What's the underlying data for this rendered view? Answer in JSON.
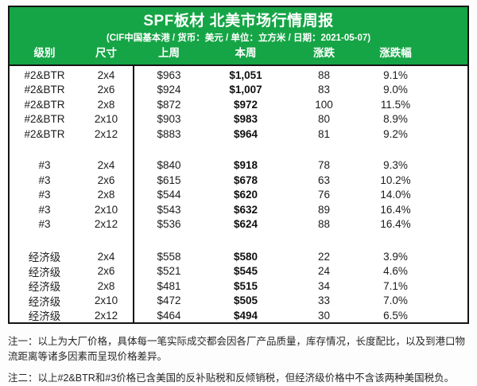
{
  "chart_data": {
    "type": "table",
    "title": "SPF板材 北美市场行情周报",
    "subtitle": "(CIF中国基本港 / 货币：美元 / 单位：立方米 / 日期：2021-05-07)",
    "columns": [
      "级别",
      "尺寸",
      "上周",
      "本周",
      "涨跌",
      "涨跌幅"
    ],
    "groups": [
      {
        "grade": "#2&BTR",
        "rows": [
          [
            "#2&BTR",
            "2x4",
            "$963",
            "$1,051",
            "88",
            "9.1%"
          ],
          [
            "#2&BTR",
            "2x6",
            "$924",
            "$1,007",
            "83",
            "9.0%"
          ],
          [
            "#2&BTR",
            "2x8",
            "$872",
            "$972",
            "100",
            "11.5%"
          ],
          [
            "#2&BTR",
            "2x10",
            "$903",
            "$983",
            "80",
            "8.9%"
          ],
          [
            "#2&BTR",
            "2x12",
            "$883",
            "$964",
            "81",
            "9.2%"
          ]
        ]
      },
      {
        "grade": "#3",
        "rows": [
          [
            "#3",
            "2x4",
            "$840",
            "$918",
            "78",
            "9.3%"
          ],
          [
            "#3",
            "2x6",
            "$615",
            "$678",
            "63",
            "10.2%"
          ],
          [
            "#3",
            "2x8",
            "$544",
            "$620",
            "76",
            "14.0%"
          ],
          [
            "#3",
            "2x10",
            "$543",
            "$632",
            "89",
            "16.4%"
          ],
          [
            "#3",
            "2x12",
            "$536",
            "$624",
            "88",
            "16.4%"
          ]
        ]
      },
      {
        "grade": "经济级",
        "rows": [
          [
            "经济级",
            "2x4",
            "$558",
            "$580",
            "22",
            "3.9%"
          ],
          [
            "经济级",
            "2x6",
            "$521",
            "$545",
            "24",
            "4.6%"
          ],
          [
            "经济级",
            "2x8",
            "$481",
            "$515",
            "34",
            "7.1%"
          ],
          [
            "经济级",
            "2x10",
            "$472",
            "$505",
            "33",
            "7.0%"
          ],
          [
            "经济级",
            "2x12",
            "$464",
            "$494",
            "30",
            "6.5%"
          ]
        ]
      }
    ]
  },
  "notes": [
    "注一：以上为大厂价格，具体每一笔实际成交都会因各厂产品质量，库存情况，长度配比，以及到港口物流距离等诸多因素而呈现价格差异。",
    "注二：以上#2&BTR和#3价格已含美国的反补贴税和反倾销税，但经济级价格中不含该两种美国税负。"
  ],
  "colors": {
    "header_green": "#16a546",
    "border_black": "#141414",
    "header_text": "#ffffff",
    "body_text": "#1c1c1c"
  }
}
